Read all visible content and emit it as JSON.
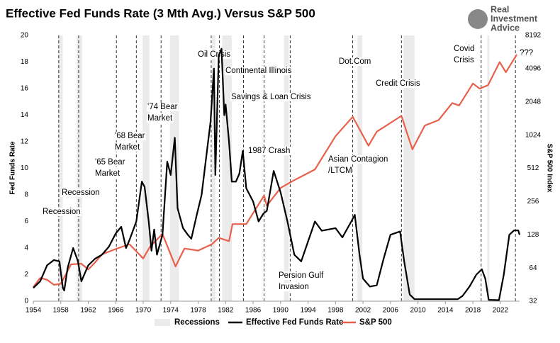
{
  "chart_data": {
    "type": "line",
    "title": "Effective Fed Funds Rate (3 Mth Avg.) Versus S&P 500",
    "brand": [
      "Real",
      "Investment",
      "Advice"
    ],
    "y_label": "Fed Funds Rate",
    "y2_label": "S&P 500 Index",
    "xlim": [
      1954,
      2024.8
    ],
    "xticks": [
      1954,
      1958,
      1962,
      1966,
      1970,
      1974,
      1978,
      1982,
      1986,
      1990,
      1994,
      1998,
      2002,
      2006,
      2010,
      2014,
      2018,
      2022
    ],
    "ylim": [
      0,
      20
    ],
    "yticks": [
      0,
      2,
      4,
      6,
      8,
      10,
      12,
      14,
      16,
      18,
      20
    ],
    "y2lim": [
      32,
      8192
    ],
    "y2ticks": [
      32,
      64,
      128,
      256,
      512,
      1024,
      2048,
      4096,
      8192
    ],
    "y2scale": "log",
    "recessions_name": "Recessions",
    "recessions_color": "#ebebeb",
    "recessions": [
      [
        1957.6,
        1958.3
      ],
      [
        1960.3,
        1961.1
      ],
      [
        1969.9,
        1970.9
      ],
      [
        1973.9,
        1975.2
      ],
      [
        1980.0,
        1980.5
      ],
      [
        1981.5,
        1982.9
      ],
      [
        1990.5,
        1991.2
      ],
      [
        2001.2,
        2001.9
      ],
      [
        2007.9,
        2009.5
      ],
      [
        2020.1,
        2020.4
      ]
    ],
    "event_lines": [
      1957.7,
      1960.6,
      1966.1,
      1969.0,
      1972.6,
      1979.9,
      1981.1,
      1984.6,
      1987.6,
      1991.4,
      2000.5,
      2007.6,
      2019.2,
      2024.2
    ],
    "annotations": [
      {
        "lines": [
          "Recession"
        ]
      },
      {
        "lines": [
          "Recession"
        ]
      },
      {
        "lines": [
          "'65 Bear",
          "Market"
        ]
      },
      {
        "lines": [
          "'68 Bear",
          "Market"
        ]
      },
      {
        "lines": [
          "'74 Bear",
          "Market"
        ]
      },
      {
        "lines": [
          "Oil Crisis"
        ]
      },
      {
        "lines": [
          "Continental Illinois"
        ]
      },
      {
        "lines": [
          "Savings & Loan Crisis"
        ]
      },
      {
        "lines": [
          "1987 Crash"
        ]
      },
      {
        "lines": [
          "Persion Gulf",
          "Invasion"
        ]
      },
      {
        "lines": [
          "Asian Contagion",
          "/LTCM"
        ]
      },
      {
        "lines": [
          "Dot.Com"
        ]
      },
      {
        "lines": [
          "Credit Crisis"
        ]
      },
      {
        "lines": [
          "Covid",
          "Crisis"
        ]
      },
      {
        "lines": [
          "???"
        ]
      }
    ],
    "series": [
      {
        "name": "Effective Fed Funds Rate",
        "color": "#000000",
        "axis": "y",
        "x": [
          1954,
          1955,
          1956,
          1957,
          1957.8,
          1958.3,
          1958.5,
          1959,
          1959.8,
          1960.5,
          1961,
          1962,
          1963,
          1964,
          1965,
          1966,
          1966.8,
          1967.5,
          1968,
          1969,
          1969.8,
          1970.2,
          1970.8,
          1971.2,
          1971.6,
          1972,
          1972.8,
          1973.5,
          1974,
          1974.6,
          1975,
          1975.8,
          1976.5,
          1977,
          1977.8,
          1978.5,
          1979,
          1979.8,
          1980.3,
          1980.5,
          1981,
          1981.4,
          1981.8,
          1982,
          1982.5,
          1982.9,
          1983.5,
          1984,
          1984.5,
          1985,
          1986,
          1986.8,
          1987.5,
          1988,
          1989,
          1990,
          1991,
          1992,
          1993,
          1994,
          1995,
          1996,
          1998,
          1999,
          2000.3,
          2000.8,
          2001.5,
          2002,
          2003,
          2004,
          2005,
          2006,
          2007.4,
          2008,
          2008.8,
          2009.5,
          2012,
          2015.8,
          2016.5,
          2017.5,
          2018.5,
          2019.3,
          2019.8,
          2020.3,
          2021.8,
          2022.5,
          2023.3,
          2024,
          2024.6,
          2024.8
        ],
        "values": [
          1.0,
          1.5,
          2.7,
          3.1,
          3.0,
          1.0,
          0.8,
          2.5,
          4.0,
          3.0,
          1.5,
          2.7,
          3.2,
          3.5,
          4.1,
          5.1,
          5.6,
          4.0,
          4.6,
          6.0,
          9.0,
          8.6,
          6.0,
          3.8,
          5.4,
          3.5,
          5.0,
          10.5,
          9.5,
          12.3,
          7.0,
          5.5,
          5.0,
          4.7,
          6.5,
          8.0,
          10.1,
          13.5,
          17.5,
          9.5,
          18.5,
          19.0,
          14.0,
          14.8,
          12.0,
          9.0,
          9.0,
          9.6,
          11.3,
          8.5,
          7.5,
          6.0,
          6.6,
          6.8,
          9.8,
          8.2,
          6.0,
          3.5,
          3.0,
          4.5,
          6.0,
          5.3,
          5.5,
          4.8,
          6.0,
          6.5,
          3.5,
          1.7,
          1.1,
          1.2,
          3.2,
          5.0,
          5.25,
          3.0,
          0.5,
          0.15,
          0.15,
          0.15,
          0.4,
          1.1,
          2.0,
          2.4,
          1.7,
          0.1,
          0.08,
          2.0,
          5.0,
          5.33,
          5.33,
          5.0
        ]
      },
      {
        "name": "S&P 500",
        "color": "#e8604c",
        "axis": "y2",
        "x": [
          1954,
          1955,
          1956,
          1957,
          1958,
          1959.5,
          1961,
          1962,
          1963,
          1964,
          1966,
          1968,
          1970,
          1971,
          1972.8,
          1974.7,
          1976,
          1978,
          1980,
          1981,
          1982.5,
          1983,
          1985,
          1987.6,
          1988,
          1990,
          1992,
          1995,
          1998,
          2000.5,
          2002.8,
          2004,
          2007.6,
          2009.2,
          2011,
          2013,
          2015,
          2016,
          2018,
          2019,
          2020.2,
          2021.9,
          2022.8,
          2024.4
        ],
        "values": [
          43,
          52,
          50,
          45,
          46,
          69,
          70,
          62,
          72,
          85,
          95,
          105,
          78,
          100,
          130,
          66,
          96,
          92,
          105,
          120,
          112,
          160,
          160,
          290,
          235,
          340,
          400,
          500,
          1000,
          1500,
          820,
          1100,
          1530,
          760,
          1250,
          1400,
          2000,
          1900,
          3000,
          2700,
          2900,
          4700,
          3800,
          5500
        ]
      }
    ]
  }
}
